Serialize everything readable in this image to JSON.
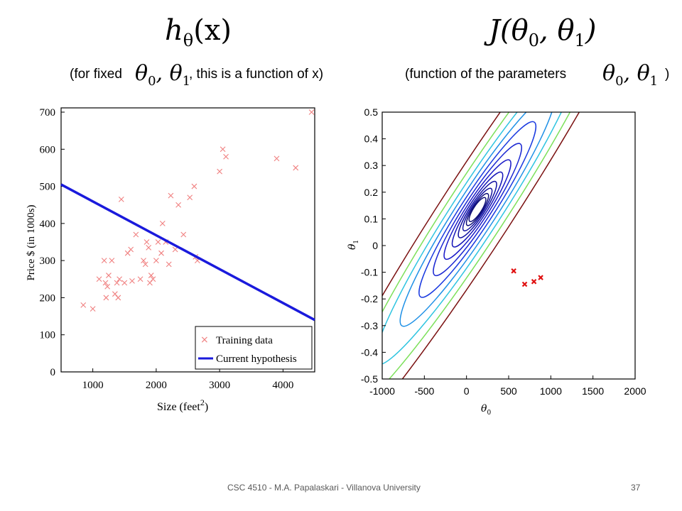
{
  "slide": {
    "left_title": "h",
    "left_title_sub": "θ",
    "left_title_arg": "(x)",
    "right_title": "J(θ",
    "right_title_sub0": "0",
    "right_title_mid": ", θ",
    "right_title_sub1": "1",
    "right_title_end": ")",
    "theta_symbol": "θ",
    "sub0": "0",
    "sub1": "1",
    "left_caption_pre": "(for fixed",
    "left_caption_post": ", this is a function of x)",
    "right_caption_pre": "(function of the parameters",
    "right_caption_post": ")",
    "footer": "CSC 4510 - M.A. Papalaskari - Villanova University",
    "page_number": "37"
  },
  "chart_data": [
    {
      "type": "scatter",
      "xlabel": "Size (feet",
      "xlabel_sup": "2",
      "xlabel_end": ")",
      "ylabel": "Price $ (in 1000s)",
      "xlim": [
        500,
        4500
      ],
      "ylim": [
        0,
        700
      ],
      "xticks": [
        1000,
        2000,
        3000,
        4000
      ],
      "yticks": [
        0,
        100,
        200,
        300,
        400,
        500,
        600,
        700
      ],
      "legend": {
        "position": "bottom-right",
        "entries": [
          "Training data",
          "Current hypothesis"
        ]
      },
      "series": [
        {
          "name": "Training data",
          "color": "#f08080",
          "marker": "x",
          "points": [
            [
              850,
              180
            ],
            [
              1000,
              170
            ],
            [
              1100,
              250
            ],
            [
              1180,
              300
            ],
            [
              1200,
              240
            ],
            [
              1210,
              200
            ],
            [
              1230,
              230
            ],
            [
              1250,
              260
            ],
            [
              1300,
              300
            ],
            [
              1350,
              210
            ],
            [
              1380,
              240
            ],
            [
              1400,
              200
            ],
            [
              1420,
              250
            ],
            [
              1450,
              465
            ],
            [
              1500,
              240
            ],
            [
              1550,
              320
            ],
            [
              1600,
              330
            ],
            [
              1620,
              245
            ],
            [
              1680,
              370
            ],
            [
              1750,
              250
            ],
            [
              1800,
              300
            ],
            [
              1830,
              290
            ],
            [
              1850,
              350
            ],
            [
              1880,
              335
            ],
            [
              1900,
              240
            ],
            [
              1920,
              260
            ],
            [
              1950,
              250
            ],
            [
              2000,
              300
            ],
            [
              2030,
              350
            ],
            [
              2080,
              320
            ],
            [
              2100,
              400
            ],
            [
              2150,
              350
            ],
            [
              2200,
              290
            ],
            [
              2230,
              475
            ],
            [
              2300,
              330
            ],
            [
              2350,
              450
            ],
            [
              2430,
              370
            ],
            [
              2530,
              470
            ],
            [
              2600,
              500
            ],
            [
              2620,
              310
            ],
            [
              2650,
              300
            ],
            [
              3000,
              540
            ],
            [
              3050,
              600
            ],
            [
              3100,
              580
            ],
            [
              3900,
              575
            ],
            [
              4200,
              550
            ],
            [
              4450,
              700
            ]
          ]
        },
        {
          "name": "Current hypothesis",
          "color": "#1a1adc",
          "line": [
            [
              500,
              505
            ],
            [
              4500,
              140
            ]
          ]
        }
      ]
    },
    {
      "type": "contour",
      "xlabel": "θ",
      "xlabel_sub": "0",
      "ylabel": "θ",
      "ylabel_sub": "1",
      "xlim": [
        -1000,
        2000
      ],
      "ylim": [
        -0.5,
        0.5
      ],
      "xticks": [
        -1000,
        -500,
        0,
        500,
        1000,
        1500,
        2000
      ],
      "yticks": [
        -0.5,
        -0.4,
        -0.3,
        -0.2,
        -0.1,
        0,
        0.1,
        0.2,
        0.3,
        0.4,
        0.5
      ],
      "center": [
        130,
        0.135
      ],
      "contours": [
        {
          "level": 1,
          "color": "#0d0d78"
        },
        {
          "level": 2,
          "color": "#0d0d78"
        },
        {
          "level": 3,
          "color": "#1010a0"
        },
        {
          "level": 4,
          "color": "#1010a0"
        },
        {
          "level": 5,
          "color": "#1515b8"
        },
        {
          "level": 6,
          "color": "#1a1ac8"
        },
        {
          "level": 7,
          "color": "#1c28d2"
        },
        {
          "level": 8,
          "color": "#1a3ae0"
        },
        {
          "level": 9,
          "color": "#1e90e6"
        },
        {
          "level": 10,
          "color": "#2ec4e0"
        },
        {
          "level": 11,
          "color": "#7ce05a"
        },
        {
          "level": 12,
          "color": "#7a1010"
        }
      ],
      "markers": {
        "color": "#e01010",
        "points": [
          [
            560,
            -0.095
          ],
          [
            690,
            -0.145
          ],
          [
            800,
            -0.135
          ],
          [
            880,
            -0.12
          ]
        ]
      }
    }
  ]
}
